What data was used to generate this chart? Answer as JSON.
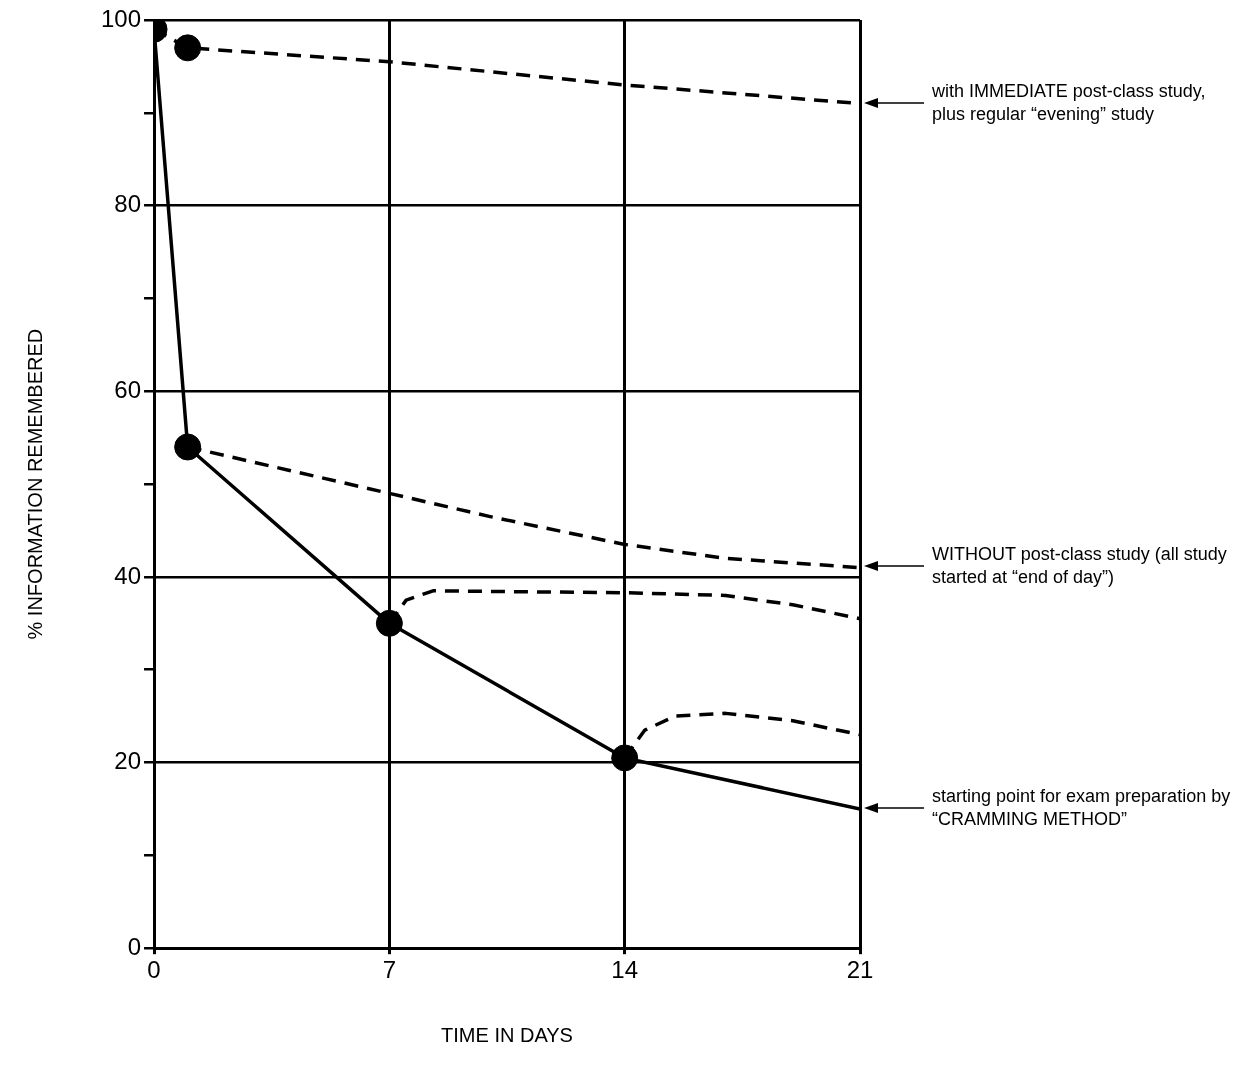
{
  "chart_data": {
    "type": "line",
    "xlabel": "TIME IN DAYS",
    "ylabel": "% INFORMATION REMEMBERED",
    "xlim": [
      0,
      21
    ],
    "xticks": [
      0,
      7,
      14,
      21
    ],
    "ylim": [
      0,
      100
    ],
    "yticks": [
      0,
      {
        "value": 10,
        "label": null
      },
      20,
      {
        "value": 30,
        "label": null
      },
      40,
      {
        "value": 50,
        "label": null
      },
      60,
      {
        "value": 70,
        "label": null
      },
      80,
      {
        "value": 90,
        "label": null
      },
      100
    ],
    "grid": true,
    "legend": false,
    "series": [
      {
        "color": "#000000",
        "line_style": "solid",
        "marker": "none",
        "x": [
          0,
          1,
          7,
          14,
          21
        ],
        "values": [
          99,
          54,
          35,
          20.5,
          15
        ]
      },
      {
        "color": "#000000",
        "line_style": "dashed",
        "marker": "none",
        "x": [
          0,
          1,
          7,
          14,
          21
        ],
        "values": [
          99,
          97,
          95.5,
          93,
          91
        ]
      },
      {
        "color": "#000000",
        "line_style": "dashed",
        "marker": "none",
        "x": [
          1,
          4,
          7,
          10,
          14,
          17,
          21
        ],
        "values": [
          54,
          51.5,
          49,
          46.5,
          43.5,
          42,
          41
        ]
      },
      {
        "color": "#000000",
        "line_style": "dashed",
        "marker": "none",
        "x": [
          7,
          7.5,
          8.3,
          11,
          14,
          17,
          19,
          21
        ],
        "values": [
          35,
          37.5,
          38.5,
          38.4,
          38.3,
          38,
          37,
          35.5
        ]
      },
      {
        "color": "#000000",
        "line_style": "dashed",
        "marker": "none",
        "x": [
          14,
          14.6,
          15.5,
          17,
          19,
          21
        ],
        "values": [
          20.5,
          23.5,
          25,
          25.3,
          24.5,
          23
        ]
      },
      {
        "type": "scatter",
        "color": "#000000",
        "marker": "circle",
        "x": [
          0,
          1,
          1,
          7,
          14
        ],
        "values": [
          99,
          97,
          54,
          35,
          20.5
        ]
      }
    ],
    "annotations": [
      "with IMMEDIATE post-class study, plus regular “evening” study",
      "WITHOUT post-class study (all study started at “end of day”)",
      "starting point for exam preparation by “CRAMMING METHOD”"
    ]
  }
}
